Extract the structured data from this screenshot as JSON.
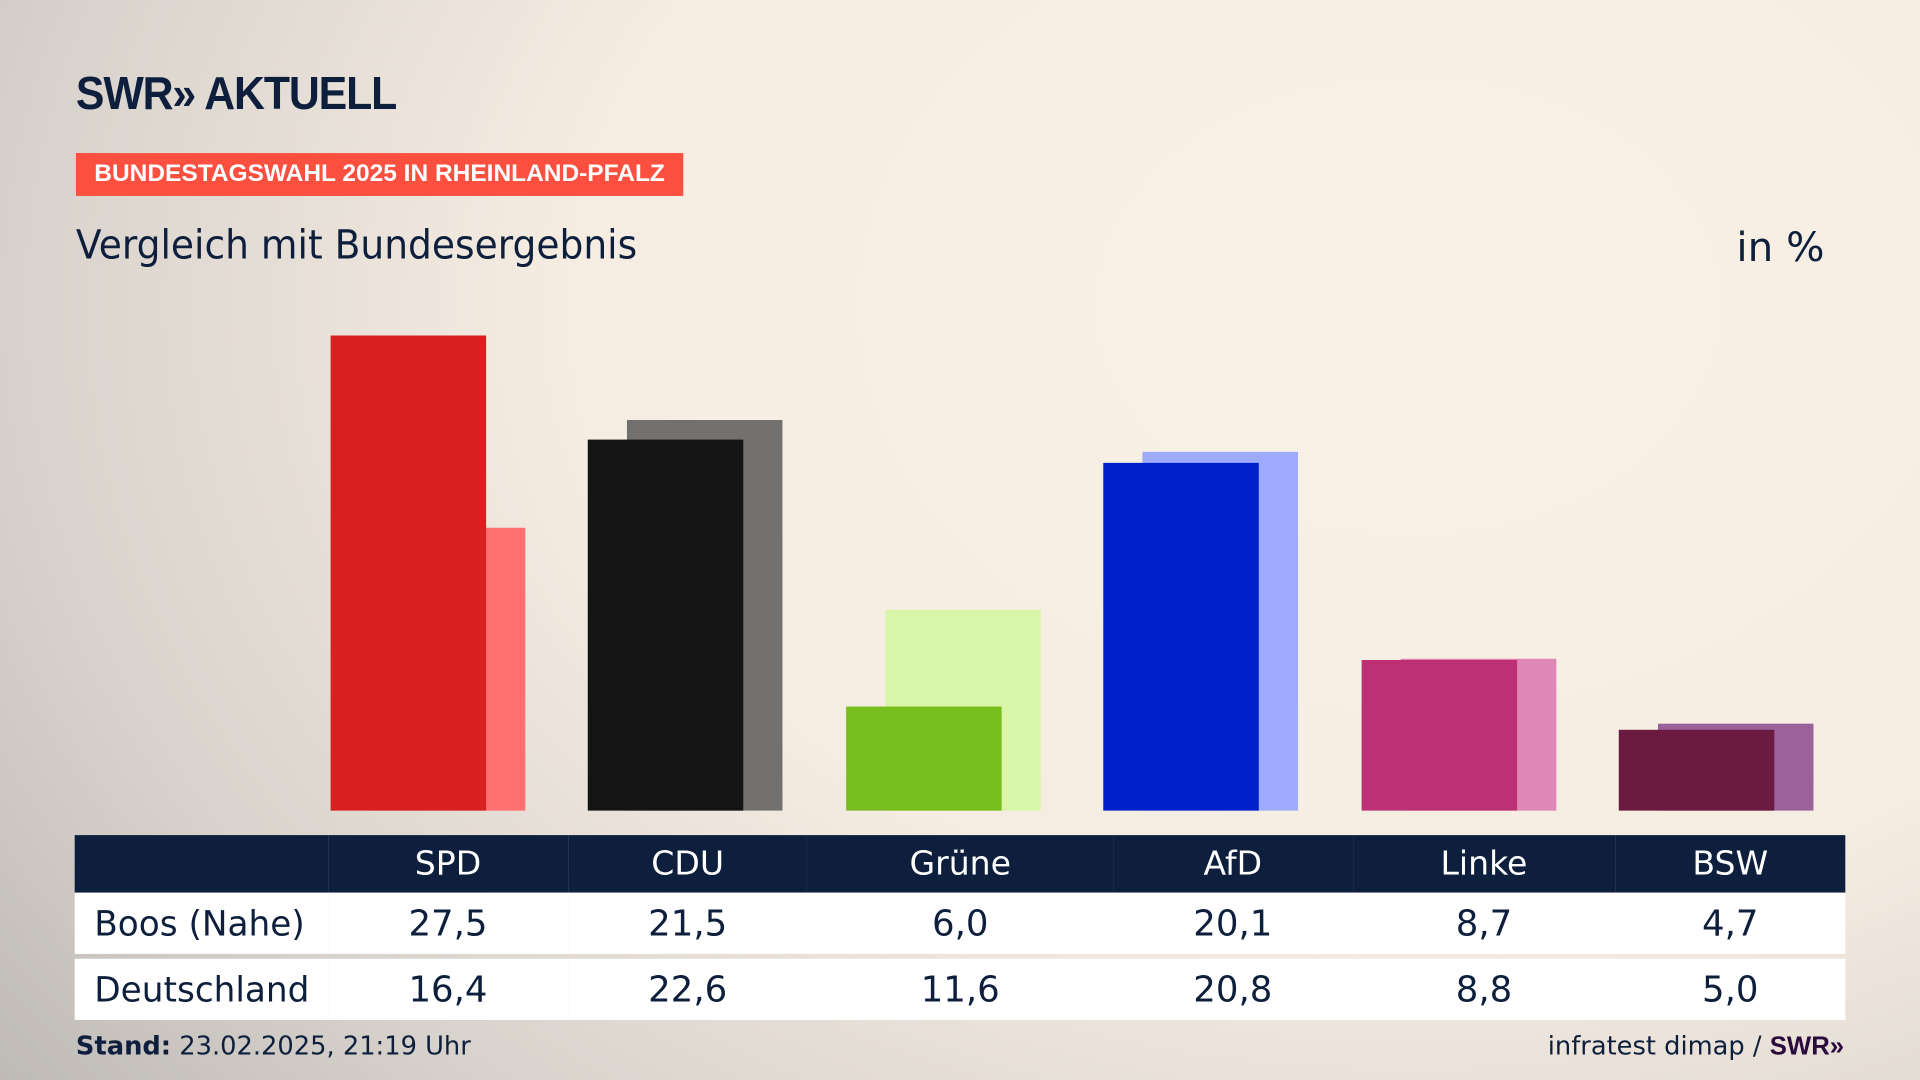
{
  "header": {
    "logo": "SWR» AKTUELL",
    "tag": "BUNDESTAGSWAHL 2025 IN RHEINLAND-PFALZ",
    "subtitle": "Vergleich mit Bundesergebnis",
    "unit": "in %"
  },
  "chart_data": {
    "type": "bar",
    "title": "Vergleich mit Bundesergebnis",
    "ylabel": "in %",
    "categories": [
      "SPD",
      "CDU",
      "Grüne",
      "AfD",
      "Linke",
      "BSW"
    ],
    "series": [
      {
        "name": "Boos (Nahe)",
        "values": [
          27.5,
          21.5,
          6.0,
          20.1,
          8.7,
          4.7
        ],
        "display": [
          "27,5",
          "21,5",
          "6,0",
          "20,1",
          "8,7",
          "4,7"
        ],
        "colors": [
          "#d82020",
          "#141414",
          "#78bd1e",
          "#0020cc",
          "#bd3075",
          "#6b1a40"
        ]
      },
      {
        "name": "Deutschland",
        "values": [
          16.4,
          22.6,
          11.6,
          20.8,
          8.8,
          5.0
        ],
        "display": [
          "16,4",
          "22,6",
          "11,6",
          "20,8",
          "8,8",
          "5,0"
        ],
        "colors": [
          "#ff7070",
          "#737170",
          "#d8f5a8",
          "#9eaafc",
          "#df88b5",
          "#9b619b"
        ]
      }
    ],
    "ylim": [
      0,
      27.5
    ]
  },
  "footer": {
    "stand_label": "Stand:",
    "stand_value": " 23.02.2025, 21:19 Uhr",
    "source": "infratest dimap / ",
    "source_logo": "SWR»"
  }
}
